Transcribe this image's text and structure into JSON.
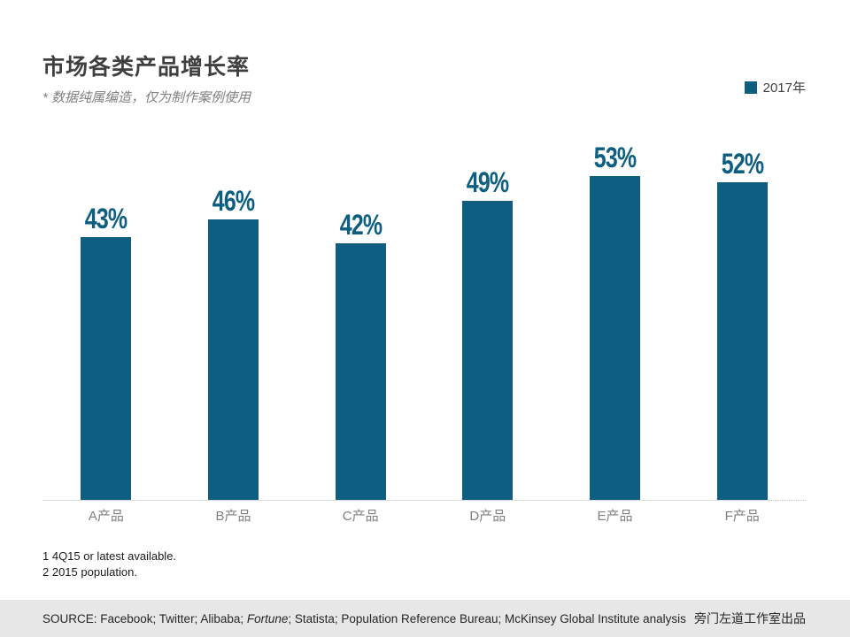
{
  "title": "市场各类产品增长率",
  "subtitle": "* 数据纯属编造，仅为制作案例使用",
  "legend": {
    "label": "2017年"
  },
  "colors": {
    "bar": "#0d5e80",
    "title": "#3f3f3f",
    "subtitle": "#7f7f7f",
    "axis": "#d9d9d9",
    "footer_bg": "#e7e7e7"
  },
  "chart_data": {
    "type": "bar",
    "title": "市场各类产品增长率",
    "categories": [
      "A产品",
      "B产品",
      "C产品",
      "D产品",
      "E产品",
      "F产品"
    ],
    "series": [
      {
        "name": "2017年",
        "values": [
          43,
          46,
          42,
          49,
          53,
          52
        ]
      }
    ],
    "value_labels": [
      "43%",
      "46%",
      "42%",
      "49%",
      "53%",
      "52%"
    ],
    "xlabel": "",
    "ylabel": "",
    "ylim": [
      0,
      58
    ],
    "grid": false,
    "legend_position": "top-right",
    "data_labels": true
  },
  "footnotes": [
    "1 4Q15 or latest available.",
    "2 2015 population."
  ],
  "footer": {
    "source_prefix": "SOURCE: Facebook; Twitter; Alibaba; ",
    "source_italic": "Fortune",
    "source_suffix": "; Statista; Population Reference Bureau; McKinsey Global Institute analysis",
    "credit": "旁门左道工作室出品"
  }
}
